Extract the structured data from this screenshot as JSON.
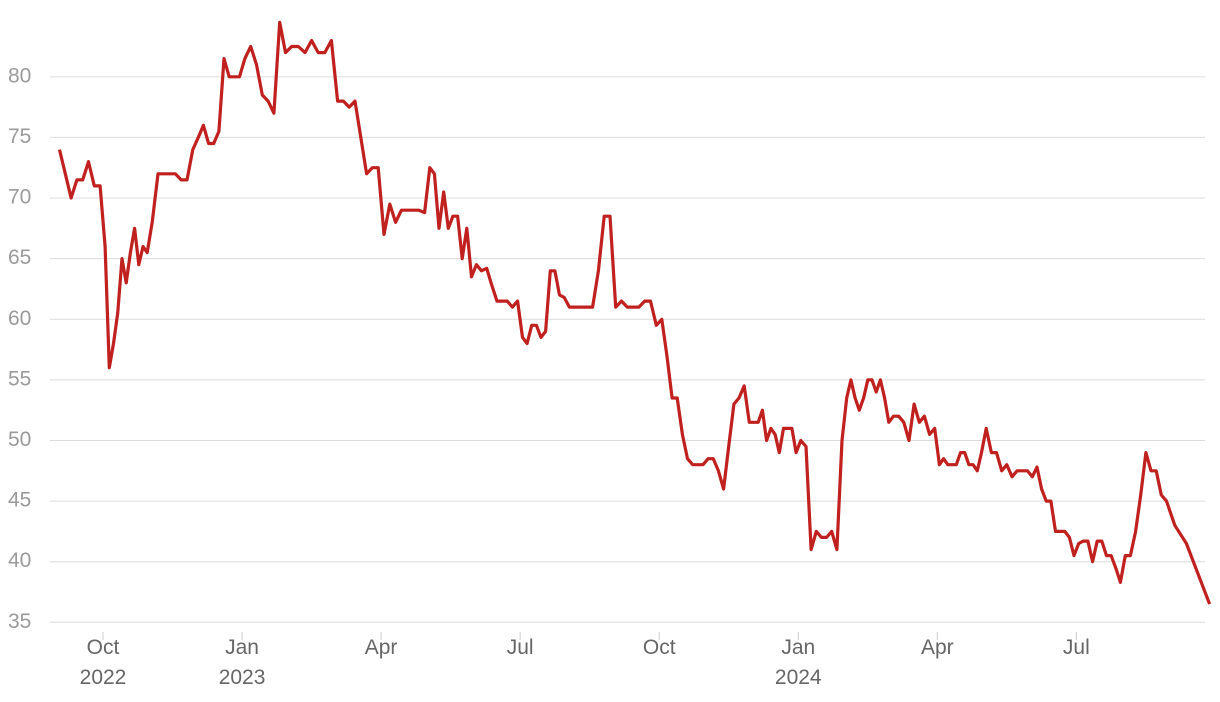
{
  "chart_data": {
    "type": "line",
    "x": [
      "2022-09",
      "2022-09",
      "2022-09",
      "2022-09",
      "2022-09",
      "2022-09",
      "2022-09",
      "2022-09",
      "2022-10",
      "2022-10",
      "2022-10",
      "2022-10",
      "2022-10",
      "2022-10",
      "2022-10",
      "2022-10",
      "2022-10",
      "2022-10",
      "2022-10",
      "2022-11",
      "2022-11",
      "2022-11",
      "2022-11",
      "2022-11",
      "2022-11",
      "2022-11",
      "2022-11",
      "2022-12",
      "2022-12",
      "2022-12",
      "2022-12",
      "2022-12",
      "2022-12",
      "2022-12",
      "2022-12",
      "2022-12",
      "2023-01",
      "2023-01",
      "2023-01",
      "2023-01",
      "2023-01",
      "2023-01",
      "2023-01",
      "2023-01",
      "2023-02",
      "2023-02",
      "2023-02",
      "2023-02",
      "2023-02",
      "2023-02",
      "2023-02",
      "2023-03",
      "2023-03",
      "2023-03",
      "2023-03",
      "2023-03",
      "2023-03",
      "2023-03",
      "2023-03",
      "2023-04",
      "2023-04",
      "2023-04",
      "2023-04",
      "2023-04",
      "2023-04",
      "2023-04",
      "2023-04",
      "2023-05",
      "2023-05",
      "2023-05",
      "2023-05",
      "2023-05",
      "2023-05",
      "2023-05",
      "2023-05",
      "2023-05",
      "2023-05",
      "2023-06",
      "2023-06",
      "2023-06",
      "2023-06",
      "2023-06",
      "2023-06",
      "2023-06",
      "2023-06",
      "2023-06",
      "2023-07",
      "2023-07",
      "2023-07",
      "2023-07",
      "2023-07",
      "2023-07",
      "2023-07",
      "2023-07",
      "2023-07",
      "2023-07",
      "2023-08",
      "2023-08",
      "2023-08",
      "2023-08",
      "2023-08",
      "2023-08",
      "2023-08",
      "2023-08",
      "2023-09",
      "2023-09",
      "2023-09",
      "2023-09",
      "2023-09",
      "2023-09",
      "2023-09",
      "2023-09",
      "2023-10",
      "2023-10",
      "2023-10",
      "2023-10",
      "2023-10",
      "2023-10",
      "2023-10",
      "2023-10",
      "2023-10",
      "2023-11",
      "2023-11",
      "2023-11",
      "2023-11",
      "2023-11",
      "2023-11",
      "2023-11",
      "2023-11",
      "2023-11",
      "2023-12",
      "2023-12",
      "2023-12",
      "2023-12",
      "2023-12",
      "2023-12",
      "2023-12",
      "2023-12",
      "2023-12",
      "2023-12",
      "2023-12",
      "2024-01",
      "2024-01",
      "2024-01",
      "2024-01",
      "2024-01",
      "2024-01",
      "2024-01",
      "2024-01",
      "2024-01",
      "2024-02",
      "2024-02",
      "2024-02",
      "2024-02",
      "2024-02",
      "2024-02",
      "2024-02",
      "2024-02",
      "2024-02",
      "2024-02",
      "2024-02",
      "2024-03",
      "2024-03",
      "2024-03",
      "2024-03",
      "2024-03",
      "2024-03",
      "2024-03",
      "2024-03",
      "2024-03",
      "2024-04",
      "2024-04",
      "2024-04",
      "2024-04",
      "2024-04",
      "2024-04",
      "2024-04",
      "2024-04",
      "2024-04",
      "2024-04",
      "2024-04",
      "2024-05",
      "2024-05",
      "2024-05",
      "2024-05",
      "2024-05",
      "2024-05",
      "2024-05",
      "2024-05",
      "2024-05",
      "2024-06",
      "2024-06",
      "2024-06",
      "2024-06",
      "2024-06",
      "2024-06",
      "2024-06",
      "2024-06",
      "2024-06",
      "2024-06",
      "2024-07",
      "2024-07",
      "2024-07",
      "2024-07",
      "2024-07",
      "2024-07",
      "2024-07",
      "2024-07",
      "2024-07",
      "2024-07",
      "2024-08",
      "2024-08",
      "2024-08",
      "2024-08",
      "2024-08",
      "2024-08",
      "2024-08",
      "2024-08",
      "2024-08",
      "2024-09",
      "2024-09",
      "2024-09",
      "2024-09"
    ],
    "series": [
      {
        "color": "#c0201e",
        "values": [
          74,
          72,
          70,
          71.5,
          71.5,
          73,
          71,
          71,
          66,
          56,
          58,
          60.5,
          65,
          63,
          65.5,
          67.5,
          64.5,
          66,
          65.5,
          68,
          72,
          72,
          72,
          72,
          71.5,
          71.5,
          74,
          75,
          76,
          74.5,
          74.5,
          75.5,
          81.5,
          80,
          80,
          80,
          81.5,
          82.5,
          81,
          78.5,
          78,
          77,
          84.5,
          82,
          82.5,
          82.5,
          82,
          83,
          82,
          82,
          83,
          78,
          78,
          77.5,
          78,
          75,
          72,
          72.5,
          72.5,
          67,
          69.5,
          68,
          69,
          69,
          69,
          69,
          68.8,
          72.5,
          72,
          67.5,
          70.5,
          67.5,
          68.5,
          68.5,
          65,
          67.5,
          63.5,
          64.5,
          64,
          64.2,
          62.8,
          61.5,
          61.5,
          61.5,
          61,
          61.5,
          58.5,
          58,
          59.5,
          59.5,
          58.5,
          59,
          64,
          64,
          62,
          61.8,
          61,
          61,
          61,
          61,
          61,
          64,
          68.5,
          68.5,
          61,
          61.5,
          61,
          61,
          61,
          61.5,
          61.5,
          59.5,
          60,
          57,
          53.5,
          53.5,
          50.5,
          48.5,
          48,
          48,
          48,
          48.5,
          48.5,
          47.5,
          46,
          49.5,
          53,
          53.5,
          54.5,
          51.5,
          51.5,
          51.5,
          52.5,
          50,
          51,
          50.5,
          49,
          51,
          51,
          51,
          49,
          50,
          49.5,
          41,
          42.5,
          42,
          42,
          42.5,
          41,
          50,
          53.5,
          55,
          53.5,
          52.5,
          53.5,
          55,
          55,
          54,
          55,
          53.5,
          51.5,
          52,
          52,
          51.5,
          50,
          53,
          51.5,
          52,
          50.5,
          51,
          48,
          48.5,
          48,
          48,
          48,
          49,
          49,
          48,
          48,
          47.5,
          49,
          51,
          49,
          49,
          47.5,
          48,
          47,
          47.5,
          47.5,
          47.5,
          47,
          47.8,
          46,
          45,
          45,
          42.5,
          42.5,
          42.5,
          42,
          40.5,
          41.5,
          41.7,
          41.7,
          40,
          41.7,
          41.7,
          40.5,
          40.5,
          39.5,
          38.3,
          40.5,
          40.5,
          42.5,
          45.5,
          49,
          47.5,
          47.5,
          45.5,
          45,
          43,
          41.5,
          39,
          36.5
        ]
      }
    ],
    "ylim": [
      34.2,
      85.1
    ],
    "yticks": [
      35,
      40,
      45,
      50,
      55,
      60,
      65,
      70,
      75,
      80
    ],
    "grid": true,
    "xticks": [
      {
        "value": "2022-10",
        "label": "Oct 2022"
      },
      {
        "value": "2023-01",
        "label": "Jan 2023"
      },
      {
        "value": "2023-04",
        "label": "Apr"
      },
      {
        "value": "2023-07",
        "label": "Jul"
      },
      {
        "value": "2023-10",
        "label": "Oct"
      },
      {
        "value": "2024-01",
        "label": "Jan 2024"
      },
      {
        "value": "2024-04",
        "label": "Apr"
      },
      {
        "value": "2024-07",
        "label": "Jul"
      }
    ]
  }
}
